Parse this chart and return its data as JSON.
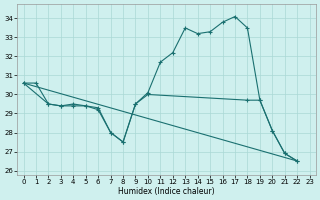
{
  "background_color": "#cff0ee",
  "grid_color": "#aad8d5",
  "line_color": "#1a7070",
  "xlabel": "Humidex (Indice chaleur)",
  "ylim": [
    25.75,
    34.75
  ],
  "xlim": [
    -0.5,
    23.5
  ],
  "yticks": [
    26,
    27,
    28,
    29,
    30,
    31,
    32,
    33,
    34
  ],
  "xticks": [
    0,
    1,
    2,
    3,
    4,
    5,
    6,
    7,
    8,
    9,
    10,
    11,
    12,
    13,
    14,
    15,
    16,
    17,
    18,
    19,
    20,
    21,
    22,
    23
  ],
  "line1_x": [
    0,
    1,
    2,
    3,
    4,
    5,
    6,
    7,
    8,
    9,
    10,
    11,
    12,
    13,
    14,
    15,
    16,
    17,
    18,
    19,
    20,
    21,
    22
  ],
  "line1_y": [
    30.6,
    30.6,
    29.5,
    29.4,
    29.4,
    29.4,
    29.2,
    28.0,
    27.5,
    29.5,
    30.1,
    31.7,
    32.2,
    33.5,
    33.2,
    33.3,
    33.8,
    34.1,
    33.5,
    29.7,
    28.1,
    26.9,
    26.5
  ],
  "line2_x": [
    0,
    2,
    3,
    4,
    5,
    6,
    7,
    8,
    9,
    10,
    18,
    19,
    20,
    21,
    22
  ],
  "line2_y": [
    30.6,
    29.5,
    29.4,
    29.5,
    29.4,
    29.3,
    28.0,
    27.5,
    29.5,
    30.0,
    29.7,
    29.7,
    28.1,
    26.9,
    26.5
  ],
  "line3_x": [
    0,
    22
  ],
  "line3_y": [
    30.6,
    26.5
  ]
}
